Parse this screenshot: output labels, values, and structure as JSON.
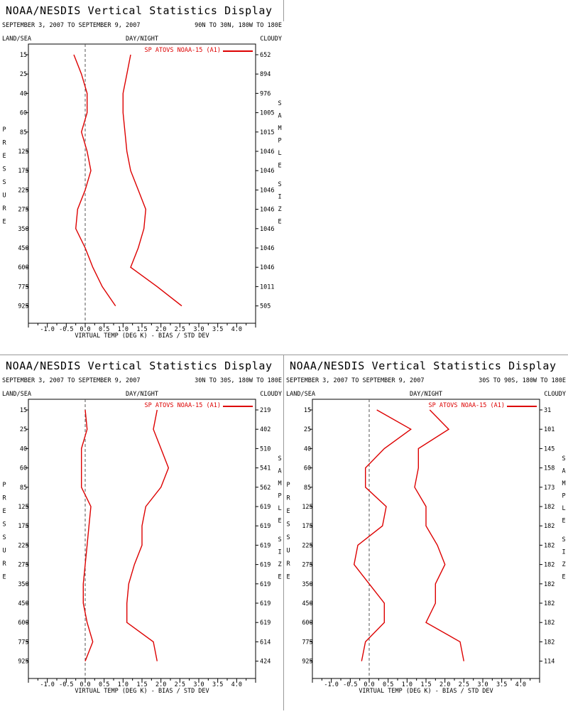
{
  "axis_label": "VIRTUAL TEMP (DEG K) - BIAS / STD DEV",
  "left_header": "LAND/SEA",
  "middle_header": "DAY/NIGHT",
  "right_header": "CLOUDY",
  "legend_label": "SP ATOVS NOAA-15 (A1)",
  "colors": {
    "series": "#dd0000",
    "frame": "#000000",
    "zero_line": "#555555"
  },
  "chart_data": [
    {
      "type": "line",
      "title": "NOAA/NESDIS Vertical Statistics Display",
      "date_range": "SEPTEMBER 3, 2007 TO SEPTEMBER 9, 2007",
      "region": "90N TO 30N, 180W TO 180E",
      "ylabel": "PRESSURE",
      "y2label": "SAMPLE SIZE",
      "xlim": [
        -1.5,
        4.5
      ],
      "x_ticks": [
        "-1.0",
        "-0.5",
        "0.0",
        "0.5",
        "1.0",
        "1.5",
        "2.0",
        "2.5",
        "3.0",
        "3.5",
        "4.0"
      ],
      "pressure": [
        "15",
        "25",
        "40",
        "60",
        "85",
        "125",
        "175",
        "225",
        "275",
        "350",
        "450",
        "600",
        "775",
        "925"
      ],
      "sample_size": [
        "652",
        "894",
        "976",
        "1005",
        "1015",
        "1046",
        "1046",
        "1046",
        "1046",
        "1046",
        "1046",
        "1046",
        "1011",
        "505"
      ],
      "series": [
        {
          "name": "bias",
          "values": [
            -0.3,
            -0.1,
            0.05,
            0.05,
            -0.1,
            0.05,
            0.15,
            0.0,
            -0.2,
            -0.25,
            0.0,
            0.2,
            0.45,
            0.8
          ]
        },
        {
          "name": "std_dev",
          "values": [
            1.2,
            1.1,
            1.0,
            1.0,
            1.05,
            1.1,
            1.2,
            1.4,
            1.6,
            1.55,
            1.4,
            1.2,
            1.9,
            2.55
          ]
        }
      ]
    },
    {
      "type": "line",
      "title": "NOAA/NESDIS Vertical Statistics Display",
      "date_range": "SEPTEMBER 3, 2007 TO SEPTEMBER 9, 2007",
      "region": "30N TO 30S, 180W TO 180E",
      "ylabel": "PRESSURE",
      "y2label": "SAMPLE SIZE",
      "xlim": [
        -1.5,
        4.5
      ],
      "x_ticks": [
        "-1.0",
        "-0.5",
        "0.0",
        "0.5",
        "1.0",
        "1.5",
        "2.0",
        "2.5",
        "3.0",
        "3.5",
        "4.0"
      ],
      "pressure": [
        "15",
        "25",
        "40",
        "60",
        "85",
        "125",
        "175",
        "225",
        "275",
        "350",
        "450",
        "600",
        "775",
        "925"
      ],
      "sample_size": [
        "219",
        "402",
        "510",
        "541",
        "562",
        "619",
        "619",
        "619",
        "619",
        "619",
        "619",
        "619",
        "614",
        "424"
      ],
      "series": [
        {
          "name": "bias",
          "values": [
            0.0,
            0.05,
            -0.1,
            -0.1,
            -0.1,
            0.15,
            0.1,
            0.05,
            0.0,
            -0.05,
            -0.05,
            0.05,
            0.2,
            0.0
          ]
        },
        {
          "name": "std_dev",
          "values": [
            1.9,
            1.8,
            2.0,
            2.2,
            2.0,
            1.6,
            1.5,
            1.5,
            1.3,
            1.15,
            1.1,
            1.1,
            1.8,
            1.9
          ]
        }
      ]
    },
    {
      "type": "line",
      "title": "NOAA/NESDIS Vertical Statistics Display",
      "date_range": "SEPTEMBER 3, 2007 TO SEPTEMBER 9, 2007",
      "region": "30S TO 90S, 180W TO 180E",
      "ylabel": "PRESSURE",
      "y2label": "SAMPLE SIZE",
      "xlim": [
        -1.5,
        4.5
      ],
      "x_ticks": [
        "-1.0",
        "-0.5",
        "0.0",
        "0.5",
        "1.0",
        "1.5",
        "2.0",
        "2.5",
        "3.0",
        "3.5",
        "4.0"
      ],
      "pressure": [
        "15",
        "25",
        "40",
        "60",
        "85",
        "125",
        "175",
        "225",
        "275",
        "350",
        "450",
        "600",
        "775",
        "925"
      ],
      "sample_size": [
        "31",
        "101",
        "145",
        "158",
        "173",
        "182",
        "182",
        "182",
        "182",
        "182",
        "182",
        "182",
        "182",
        "114"
      ],
      "series": [
        {
          "name": "bias",
          "values": [
            0.2,
            1.1,
            0.4,
            -0.1,
            -0.1,
            0.45,
            0.35,
            -0.3,
            -0.4,
            0.0,
            0.4,
            0.4,
            -0.1,
            -0.2
          ]
        },
        {
          "name": "std_dev",
          "values": [
            1.6,
            2.1,
            1.3,
            1.3,
            1.2,
            1.5,
            1.5,
            1.8,
            2.0,
            1.75,
            1.75,
            1.5,
            2.4,
            2.5
          ]
        }
      ]
    }
  ]
}
